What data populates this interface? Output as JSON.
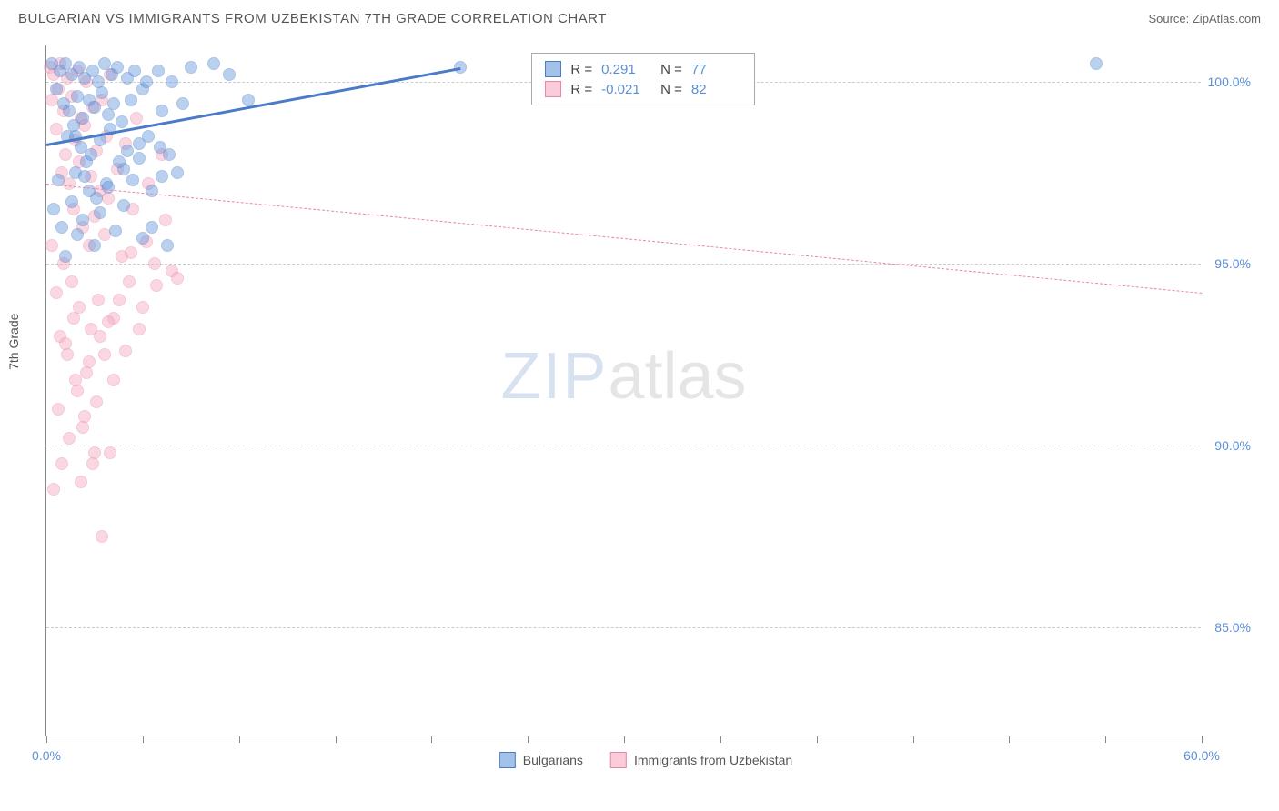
{
  "header": {
    "title": "BULGARIAN VS IMMIGRANTS FROM UZBEKISTAN 7TH GRADE CORRELATION CHART",
    "source": "Source: ZipAtlas.com"
  },
  "chart": {
    "type": "scatter",
    "ylabel": "7th Grade",
    "xlim": [
      0,
      60
    ],
    "ylim": [
      82,
      101
    ],
    "x_ticks": [
      0,
      5,
      10,
      15,
      20,
      25,
      30,
      35,
      40,
      45,
      50,
      55,
      60
    ],
    "x_tick_labels": {
      "0": "0.0%",
      "60": "60.0%"
    },
    "y_ticks": [
      85,
      90,
      95,
      100
    ],
    "y_tick_labels": {
      "85": "85.0%",
      "90": "90.0%",
      "95": "95.0%",
      "100": "100.0%"
    },
    "grid_color": "#cccccc",
    "background_color": "#ffffff",
    "axis_color": "#888888",
    "marker_size": 14,
    "marker_opacity": 0.45,
    "series": {
      "bulgarians": {
        "label": "Bulgarians",
        "fill_color": "#6699dd",
        "stroke_color": "#4a7bc8",
        "R": "0.291",
        "N": "77",
        "trend": {
          "x1": 0,
          "y1": 98.3,
          "x2": 21.5,
          "y2": 100.4,
          "color": "#4a7bc8",
          "width": 2.5,
          "dashed": false
        },
        "points": [
          [
            0.3,
            100.5
          ],
          [
            0.5,
            99.8
          ],
          [
            0.7,
            100.3
          ],
          [
            0.9,
            99.4
          ],
          [
            1.0,
            100.5
          ],
          [
            1.1,
            98.5
          ],
          [
            1.2,
            99.2
          ],
          [
            1.3,
            100.2
          ],
          [
            1.4,
            98.8
          ],
          [
            1.5,
            97.5
          ],
          [
            1.6,
            99.6
          ],
          [
            1.7,
            100.4
          ],
          [
            1.8,
            98.2
          ],
          [
            1.9,
            99.0
          ],
          [
            2.0,
            100.1
          ],
          [
            2.1,
            97.8
          ],
          [
            2.2,
            99.5
          ],
          [
            2.3,
            98.0
          ],
          [
            2.4,
            100.3
          ],
          [
            2.5,
            99.3
          ],
          [
            2.6,
            96.8
          ],
          [
            2.7,
            100.0
          ],
          [
            2.8,
            98.4
          ],
          [
            2.9,
            99.7
          ],
          [
            3.0,
            100.5
          ],
          [
            3.1,
            97.2
          ],
          [
            3.2,
            99.1
          ],
          [
            3.3,
            98.7
          ],
          [
            3.4,
            100.2
          ],
          [
            3.5,
            99.4
          ],
          [
            3.7,
            100.4
          ],
          [
            3.9,
            98.9
          ],
          [
            4.0,
            97.6
          ],
          [
            4.2,
            100.1
          ],
          [
            4.4,
            99.5
          ],
          [
            4.6,
            100.3
          ],
          [
            4.8,
            98.3
          ],
          [
            5.0,
            99.8
          ],
          [
            5.2,
            100.0
          ],
          [
            5.5,
            97.0
          ],
          [
            5.8,
            100.3
          ],
          [
            6.0,
            99.2
          ],
          [
            6.3,
            95.5
          ],
          [
            6.5,
            100.0
          ],
          [
            6.8,
            97.5
          ],
          [
            7.1,
            99.4
          ],
          [
            7.5,
            100.4
          ],
          [
            8.7,
            100.5
          ],
          [
            9.5,
            100.2
          ],
          [
            10.5,
            99.5
          ],
          [
            21.5,
            100.4
          ],
          [
            54.5,
            100.5
          ],
          [
            0.4,
            96.5
          ],
          [
            0.6,
            97.3
          ],
          [
            0.8,
            96.0
          ],
          [
            1.0,
            95.2
          ],
          [
            1.3,
            96.7
          ],
          [
            1.6,
            95.8
          ],
          [
            1.9,
            96.2
          ],
          [
            2.2,
            97.0
          ],
          [
            2.5,
            95.5
          ],
          [
            2.8,
            96.4
          ],
          [
            3.2,
            97.1
          ],
          [
            3.6,
            95.9
          ],
          [
            4.0,
            96.6
          ],
          [
            4.5,
            97.3
          ],
          [
            5.0,
            95.7
          ],
          [
            5.5,
            96.0
          ],
          [
            6.0,
            97.4
          ],
          [
            4.2,
            98.1
          ],
          [
            4.8,
            97.9
          ],
          [
            5.3,
            98.5
          ],
          [
            5.9,
            98.2
          ],
          [
            6.4,
            98.0
          ],
          [
            3.8,
            97.8
          ],
          [
            2.0,
            97.4
          ],
          [
            1.5,
            98.5
          ]
        ]
      },
      "uzbekistan": {
        "label": "Immigrants from Uzbekistan",
        "fill_color": "#f8a8c0",
        "stroke_color": "#e888a8",
        "R": "-0.021",
        "N": "82",
        "trend": {
          "x1": 0,
          "y1": 97.2,
          "x2": 60,
          "y2": 94.2,
          "color": "#e888a8",
          "width": 1.5,
          "dashed": true
        },
        "points": [
          [
            0.2,
            100.4
          ],
          [
            0.3,
            99.5
          ],
          [
            0.4,
            100.2
          ],
          [
            0.5,
            98.7
          ],
          [
            0.6,
            99.8
          ],
          [
            0.7,
            100.5
          ],
          [
            0.8,
            97.5
          ],
          [
            0.9,
            99.2
          ],
          [
            1.0,
            98.0
          ],
          [
            1.1,
            100.1
          ],
          [
            1.2,
            97.2
          ],
          [
            1.3,
            99.6
          ],
          [
            1.4,
            96.5
          ],
          [
            1.5,
            98.4
          ],
          [
            1.6,
            100.3
          ],
          [
            1.7,
            97.8
          ],
          [
            1.8,
            99.0
          ],
          [
            1.9,
            96.0
          ],
          [
            2.0,
            98.8
          ],
          [
            2.1,
            100.0
          ],
          [
            2.2,
            95.5
          ],
          [
            2.3,
            97.4
          ],
          [
            2.4,
            99.3
          ],
          [
            2.5,
            96.3
          ],
          [
            2.6,
            98.1
          ],
          [
            2.7,
            94.0
          ],
          [
            2.8,
            97.0
          ],
          [
            2.9,
            99.5
          ],
          [
            3.0,
            95.8
          ],
          [
            3.1,
            98.5
          ],
          [
            3.2,
            96.8
          ],
          [
            3.3,
            100.2
          ],
          [
            3.5,
            93.5
          ],
          [
            3.7,
            97.6
          ],
          [
            3.9,
            95.2
          ],
          [
            4.1,
            98.3
          ],
          [
            4.3,
            94.5
          ],
          [
            4.5,
            96.5
          ],
          [
            4.7,
            99.0
          ],
          [
            5.0,
            93.8
          ],
          [
            5.3,
            97.2
          ],
          [
            5.6,
            95.0
          ],
          [
            6.0,
            98.0
          ],
          [
            6.5,
            94.8
          ],
          [
            0.3,
            95.5
          ],
          [
            0.5,
            94.2
          ],
          [
            0.7,
            93.0
          ],
          [
            0.9,
            95.0
          ],
          [
            1.1,
            92.5
          ],
          [
            1.3,
            94.5
          ],
          [
            1.5,
            91.8
          ],
          [
            1.7,
            93.8
          ],
          [
            1.9,
            90.5
          ],
          [
            2.1,
            92.0
          ],
          [
            2.3,
            93.2
          ],
          [
            2.5,
            89.8
          ],
          [
            0.4,
            88.8
          ],
          [
            0.6,
            91.0
          ],
          [
            0.8,
            89.5
          ],
          [
            1.0,
            92.8
          ],
          [
            1.2,
            90.2
          ],
          [
            1.4,
            93.5
          ],
          [
            1.6,
            91.5
          ],
          [
            1.8,
            89.0
          ],
          [
            2.0,
            90.8
          ],
          [
            2.2,
            92.3
          ],
          [
            2.4,
            89.5
          ],
          [
            2.6,
            91.2
          ],
          [
            2.8,
            93.0
          ],
          [
            3.0,
            92.5
          ],
          [
            3.3,
            89.8
          ],
          [
            2.9,
            87.5
          ],
          [
            3.2,
            93.4
          ],
          [
            3.5,
            91.8
          ],
          [
            3.8,
            94.0
          ],
          [
            4.1,
            92.6
          ],
          [
            4.4,
            95.3
          ],
          [
            4.8,
            93.2
          ],
          [
            5.2,
            95.6
          ],
          [
            5.7,
            94.4
          ],
          [
            6.2,
            96.2
          ],
          [
            6.8,
            94.6
          ]
        ]
      }
    },
    "stats_box": {
      "left_pct": 42,
      "top_y": 100.8
    },
    "watermark": {
      "zip": "ZIP",
      "atlas": "atlas"
    }
  }
}
